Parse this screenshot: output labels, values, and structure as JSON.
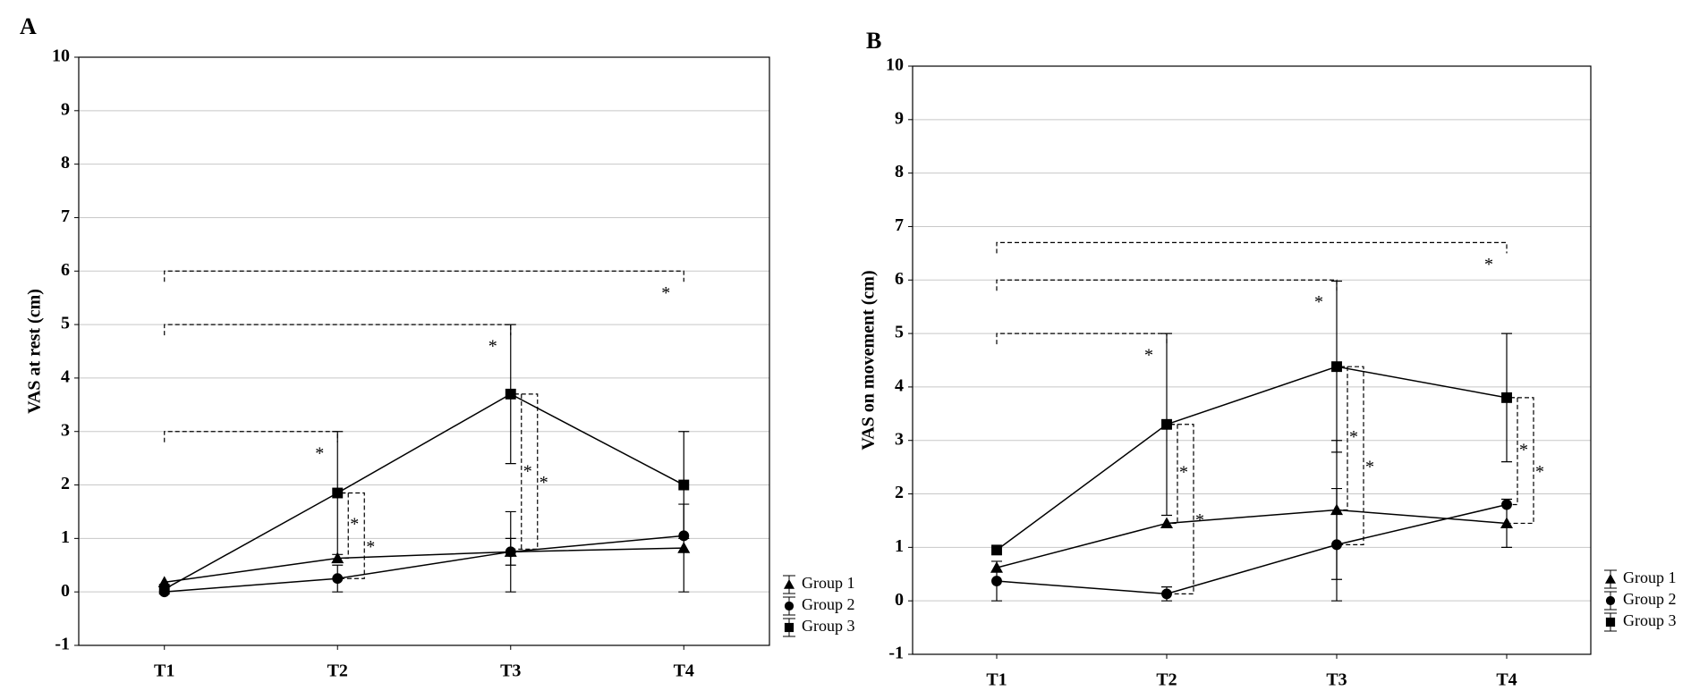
{
  "chart_data": [
    {
      "type": "line",
      "panel": "A",
      "ylabel": "VAS at rest (cm)",
      "categories": [
        "T1",
        "T2",
        "T3",
        "T4"
      ],
      "ylim": [
        -1,
        10
      ],
      "yticks": [
        -1,
        0,
        1,
        2,
        3,
        4,
        5,
        6,
        7,
        8,
        9,
        10
      ],
      "grid": true,
      "legend": "lower right",
      "series": [
        {
          "name": "Group 1",
          "color": "#000000",
          "marker": "triangle",
          "values": [
            0.18,
            0.63,
            0.75,
            0.82
          ],
          "errors": [
            null,
            null,
            0.25,
            0.82
          ]
        },
        {
          "name": "Group 2",
          "color": "#000000",
          "marker": "circle",
          "values": [
            0,
            0.25,
            0.75,
            1.05
          ],
          "errors": [
            null,
            0.25,
            0.75,
            null
          ]
        },
        {
          "name": "Group 3",
          "color": "#000000",
          "marker": "square",
          "values": [
            0.05,
            1.85,
            3.7,
            2.0
          ],
          "errors": [
            null,
            1.15,
            1.3,
            1.0
          ]
        }
      ],
      "brackets": [
        {
          "from": 0,
          "to": 1,
          "level": 3,
          "label": "*"
        },
        {
          "from": 0,
          "to": 2,
          "level": 5,
          "label": "*"
        },
        {
          "from": 0,
          "to": 3,
          "level": 6,
          "label": "*"
        }
      ],
      "vbrackets": [
        {
          "at": 1,
          "low": 0.63,
          "high": 1.85,
          "label": "*"
        },
        {
          "at": 1,
          "low": 0.25,
          "high": 1.85,
          "label": "*"
        },
        {
          "at": 2,
          "low": 0.75,
          "high": 3.7,
          "label": "*"
        },
        {
          "at": 2,
          "low": 0.8,
          "high": 3.7,
          "label": "*"
        }
      ]
    },
    {
      "type": "line",
      "panel": "B",
      "ylabel": "VAS on movement (cm)",
      "categories": [
        "T1",
        "T2",
        "T3",
        "T4"
      ],
      "ylim": [
        -1,
        10
      ],
      "yticks": [
        -1,
        0,
        1,
        2,
        3,
        4,
        5,
        6,
        7,
        8,
        9,
        10
      ],
      "grid": true,
      "legend": "lower right",
      "series": [
        {
          "name": "Group 1",
          "color": "#000000",
          "marker": "triangle",
          "values": [
            0.62,
            1.45,
            1.7,
            1.45
          ],
          "errors": [
            null,
            null,
            1.3,
            0.45
          ]
        },
        {
          "name": "Group 2",
          "color": "#000000",
          "marker": "circle",
          "values": [
            0.37,
            0.13,
            1.05,
            1.8
          ],
          "errors": [
            0.37,
            0.13,
            1.05,
            null
          ]
        },
        {
          "name": "Group 3",
          "color": "#000000",
          "marker": "square",
          "values": [
            0.95,
            3.3,
            4.38,
            3.8
          ],
          "errors": [
            null,
            1.7,
            1.6,
            1.2
          ]
        }
      ],
      "brackets": [
        {
          "from": 0,
          "to": 1,
          "level": 5,
          "label": "*"
        },
        {
          "from": 0,
          "to": 2,
          "level": 6,
          "label": "*"
        },
        {
          "from": 0,
          "to": 3,
          "level": 6.7,
          "label": "*"
        }
      ],
      "vbrackets": [
        {
          "at": 1,
          "low": 1.45,
          "high": 3.3,
          "label": "*"
        },
        {
          "at": 1,
          "low": 0.13,
          "high": 3.3,
          "label": "*"
        },
        {
          "at": 2,
          "low": 1.7,
          "high": 4.38,
          "label": "*"
        },
        {
          "at": 2,
          "low": 1.05,
          "high": 4.38,
          "label": "*"
        },
        {
          "at": 3,
          "low": 1.8,
          "high": 3.8,
          "label": "*"
        },
        {
          "at": 3,
          "low": 1.45,
          "high": 3.8,
          "label": "*"
        }
      ]
    }
  ]
}
